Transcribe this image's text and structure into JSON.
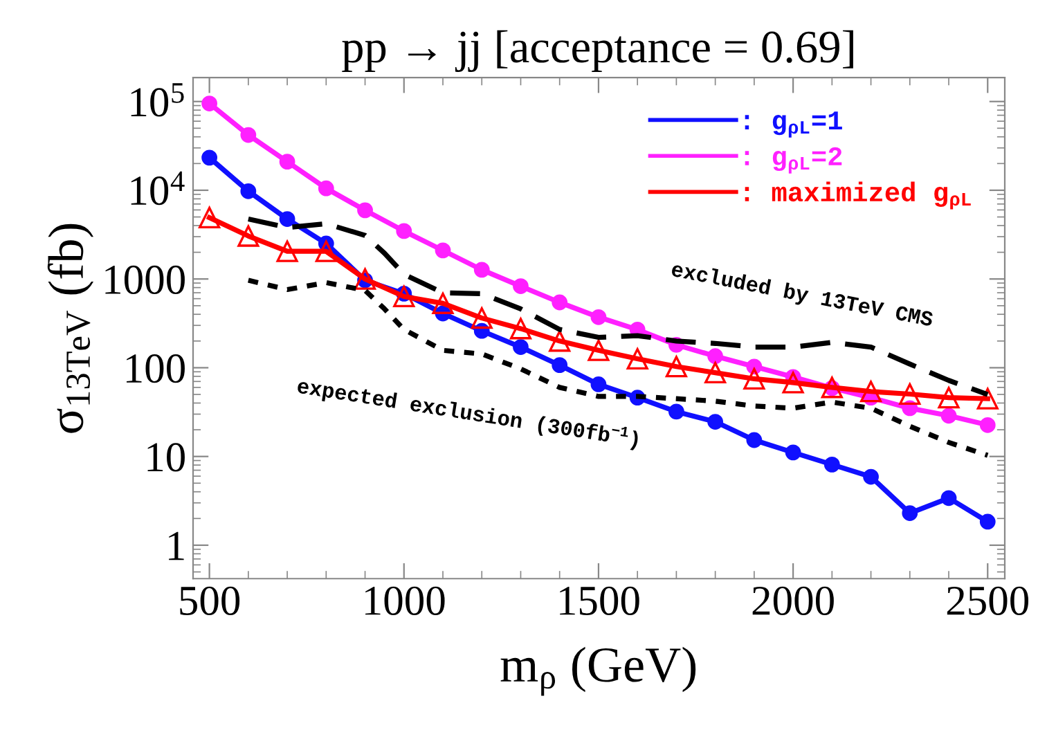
{
  "chart_data": {
    "type": "line",
    "title": "pp → jj [acceptance = 0.69]",
    "xlabel": "m$_{ρ}$ (GeV)",
    "ylabel": "σ$_{13TeV}$ (fb)",
    "log": "y",
    "xlim": [
      458,
      2544
    ],
    "ylim": [
      0.42,
      186000
    ],
    "xticks": [
      500,
      1000,
      1500,
      2000,
      2500
    ],
    "yticks": [
      1,
      10,
      100,
      1000,
      {
        "value": 10000,
        "label": "10$^{4}$"
      },
      {
        "value": 100000,
        "label": "10$^{5}$"
      }
    ],
    "grid": false,
    "legend": "top right",
    "series": [
      {
        "name": ": g$_{ρL}$=1",
        "color": "#1010ff",
        "marker": "circle",
        "x": [
          500,
          600,
          700,
          800,
          900,
          1000,
          1100,
          1200,
          1300,
          1400,
          1500,
          1600,
          1700,
          1800,
          1900,
          2000,
          2100,
          2200,
          2300,
          2400,
          2500
        ],
        "values": [
          23300,
          9760,
          4740,
          2510,
          967,
          684,
          409,
          260,
          171,
          107,
          65,
          46,
          32,
          24.6,
          15.3,
          11.1,
          8.1,
          5.9,
          2.3,
          3.4,
          1.84
        ]
      },
      {
        "name": ": g$_{ρL}$=2",
        "color": "#ff20ff",
        "marker": "circle",
        "x": [
          500,
          600,
          700,
          800,
          900,
          1000,
          1100,
          1200,
          1300,
          1400,
          1500,
          1600,
          1700,
          1800,
          1900,
          2000,
          2100,
          2200,
          2300,
          2400,
          2500
        ],
        "values": [
          95000,
          42000,
          21000,
          10500,
          5950,
          3470,
          2100,
          1270,
          830,
          545,
          372,
          269,
          181,
          135,
          103,
          78.6,
          59,
          46,
          35,
          28.8,
          22.6
        ]
      },
      {
        "name": ": maximized g$_{ρL}$",
        "color": "#ff0000",
        "marker": "triangle",
        "x": [
          500,
          600,
          700,
          800,
          900,
          1000,
          1100,
          1200,
          1300,
          1400,
          1500,
          1600,
          1700,
          1800,
          1900,
          2000,
          2100,
          2200,
          2300,
          2400,
          2500
        ],
        "values": [
          4920,
          3050,
          2050,
          2050,
          1000,
          635,
          532,
          363,
          276,
          200,
          157,
          126,
          103,
          88,
          75,
          68,
          60,
          54,
          50.5,
          46,
          44.8
        ]
      },
      {
        "color": "#000000",
        "marker": "none",
        "line_style": "dashed",
        "x": [
          600,
          700,
          800,
          900,
          950,
          1000,
          1100,
          1200,
          1300,
          1400,
          1500,
          1600,
          1700,
          1800,
          1900,
          2000,
          2100,
          2200,
          2300,
          2400,
          2500
        ],
        "values": [
          4750,
          3800,
          4200,
          3100,
          1950,
          1130,
          700,
          684,
          460,
          270,
          220,
          230,
          200,
          188,
          171,
          171,
          193,
          171,
          110,
          72,
          50
        ]
      },
      {
        "color": "#000000",
        "marker": "none",
        "line_style": "dotted",
        "x": [
          600,
          700,
          800,
          900,
          950,
          1000,
          1100,
          1200,
          1300,
          1400,
          1500,
          1600,
          1700,
          1800,
          1900,
          2000,
          2100,
          2200,
          2300,
          2400,
          2500
        ],
        "values": [
          967,
          760,
          910,
          745,
          460,
          270,
          157,
          143,
          97,
          60,
          47.5,
          47.5,
          44.8,
          42,
          37,
          35,
          41,
          35,
          21.9,
          14.4,
          10.3
        ]
      }
    ],
    "annotations": [
      "excluded by 13TeV CMS",
      "expected exclusion (300fb$^{−1}$)"
    ]
  }
}
